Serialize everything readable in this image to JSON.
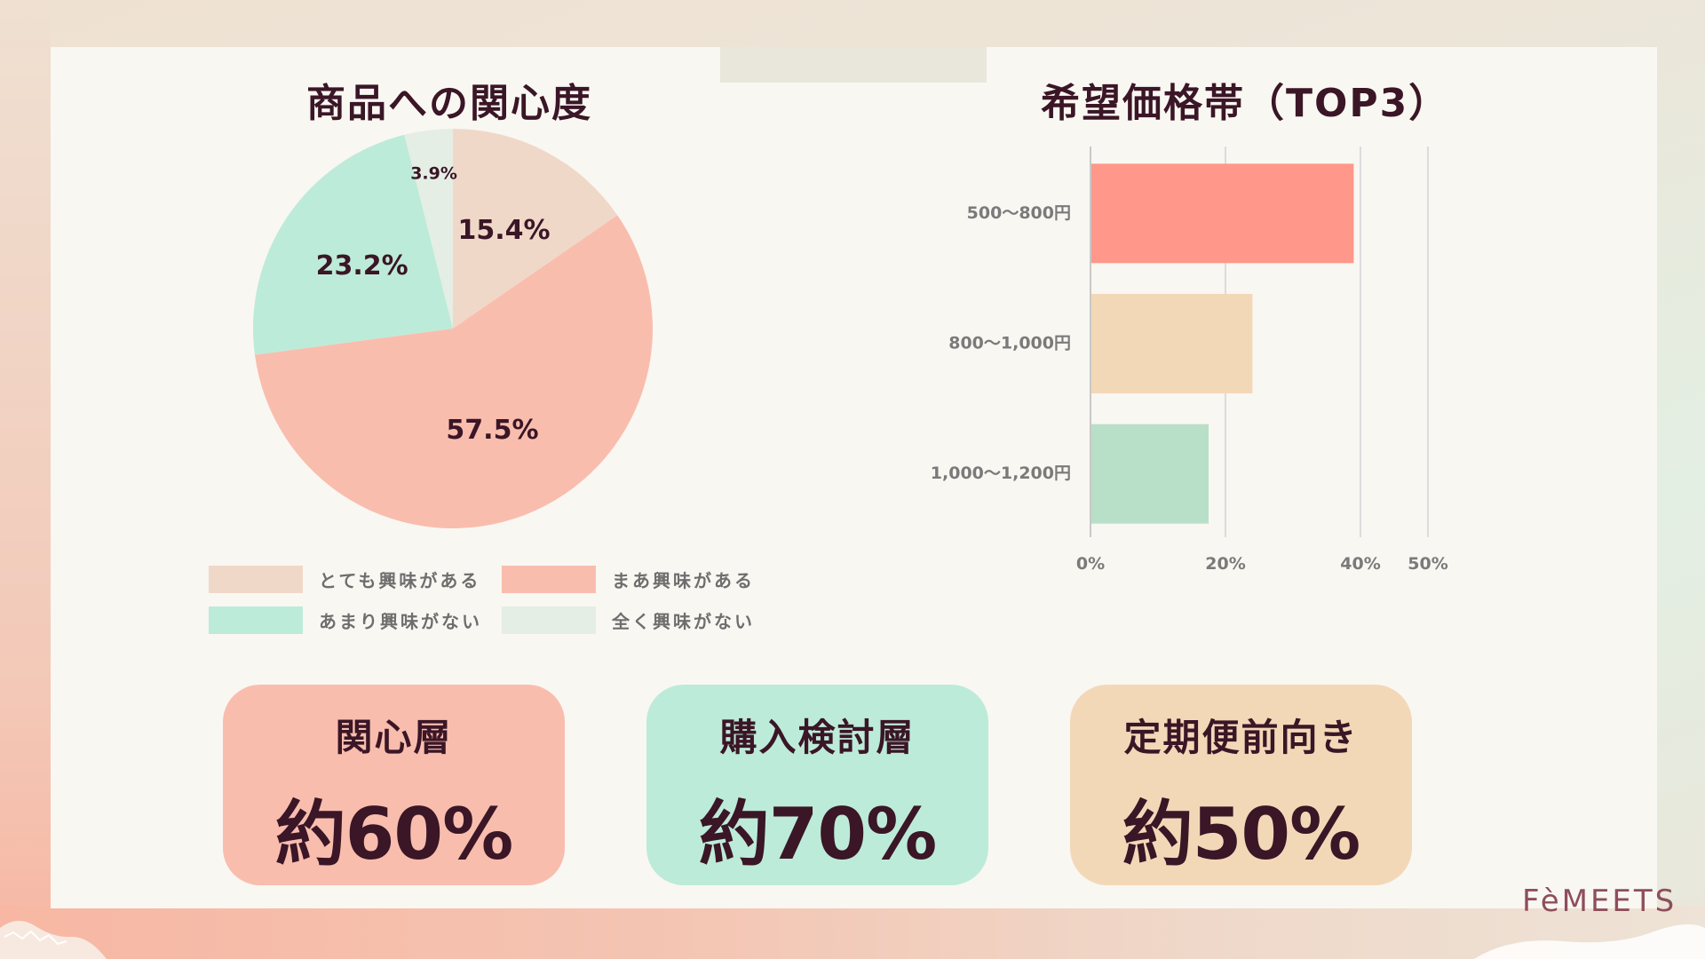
{
  "brand": "FèMEETS",
  "colors": {
    "pink": "#f9bdae",
    "peach": "#f0d8c8",
    "mint": "#bdebd9",
    "sage": "#e5eee4",
    "salmon_bar": "#ff988a",
    "tan_bar": "#f3d8b8",
    "green_bar": "#b8dfc8",
    "text_dark": "#3a1626"
  },
  "chart_data": [
    {
      "type": "pie",
      "title": "商品への関心度",
      "slices": [
        {
          "label": "とても興味がある",
          "value": 15.4,
          "display": "15.4%",
          "color": "#f0d8c8"
        },
        {
          "label": "まあ興味がある",
          "value": 57.5,
          "display": "57.5%",
          "color": "#f9bdae"
        },
        {
          "label": "あまり興味がない",
          "value": 23.2,
          "display": "23.2%",
          "color": "#bdebd9"
        },
        {
          "label": "全く興味がない",
          "value": 3.9,
          "display": "3.9%",
          "color": "#e5eee4"
        }
      ],
      "legend_position": "bottom"
    },
    {
      "type": "bar",
      "orientation": "horizontal",
      "title": "希望価格帯（TOP3）",
      "categories": [
        "500〜800円",
        "800〜1,000円",
        "1,000〜1,200円"
      ],
      "values": [
        39,
        24,
        17.5
      ],
      "colors": [
        "#ff988a",
        "#f3d8b8",
        "#b8dfc8"
      ],
      "xlim": [
        0,
        50
      ],
      "x_ticks": [
        {
          "value": 0,
          "label": "0%"
        },
        {
          "value": 20,
          "label": "20%"
        },
        {
          "value": 40,
          "label": "40%"
        },
        {
          "value": 50,
          "label": "50%"
        }
      ],
      "grid": true
    }
  ],
  "cards": [
    {
      "title": "関心層",
      "value": "約60%"
    },
    {
      "title": "購入検討層",
      "value": "約70%"
    },
    {
      "title": "定期便前向き",
      "value": "約50%"
    }
  ]
}
